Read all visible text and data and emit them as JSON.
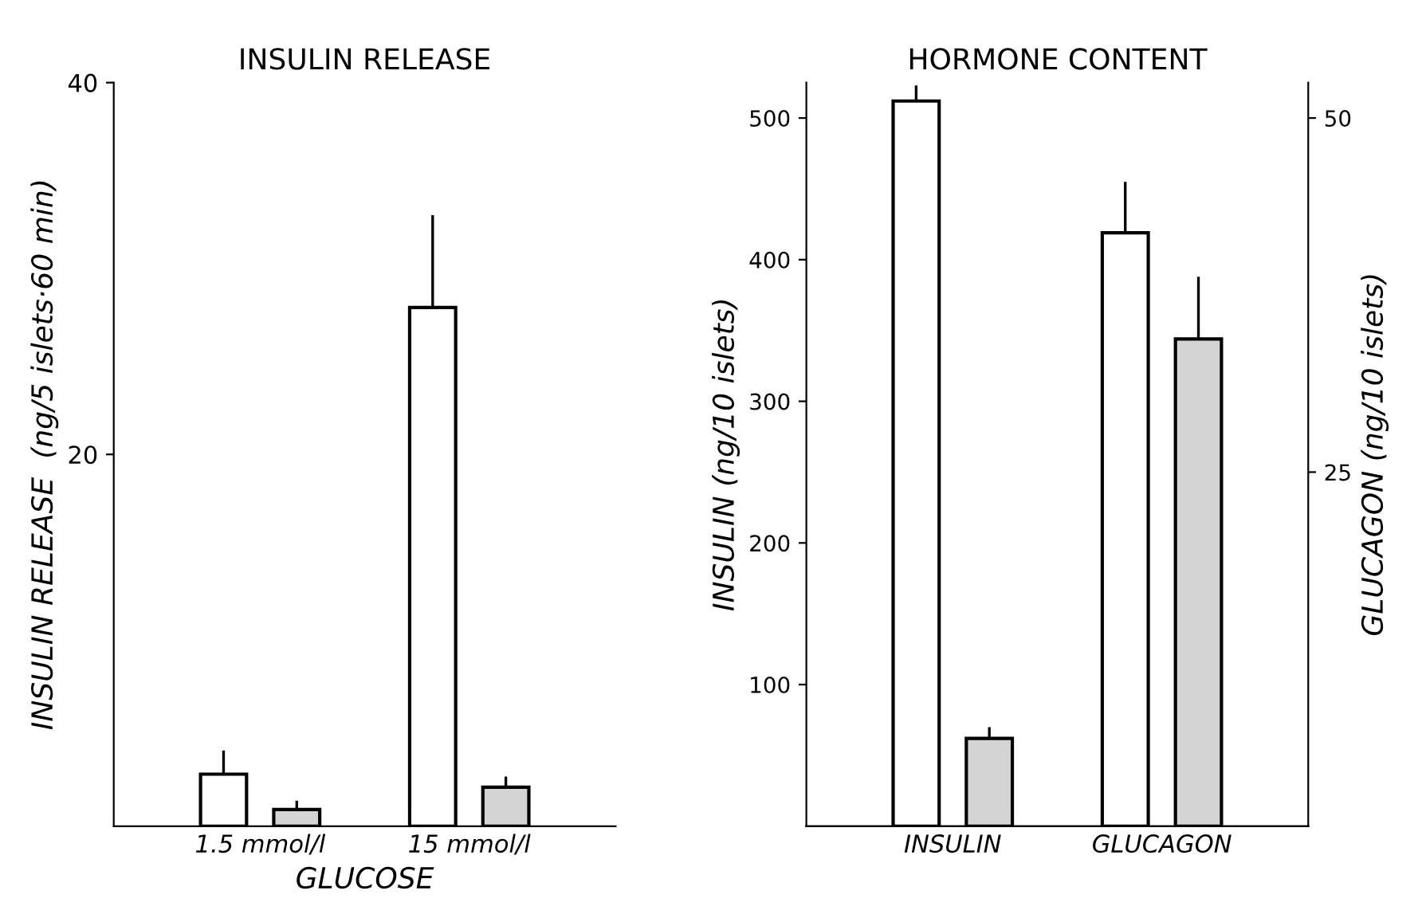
{
  "chart_data": [
    {
      "type": "bar",
      "title": "INSULIN RELEASE",
      "xlabel": "GLUCOSE",
      "ylabel": "INSULIN RELEASE  (ng/5 islets·60 min)",
      "categories": [
        "1.5 mmol/l",
        "15 mmol/l"
      ],
      "ylim": [
        0,
        40
      ],
      "yticks": [
        20,
        40
      ],
      "grid": false,
      "legend": false,
      "series": [
        {
          "color": "#ffffff",
          "values": [
            2.8,
            27.9
          ],
          "errors": [
            [
              2.8,
              4.0
            ],
            [
              27.9,
              32.8
            ]
          ]
        },
        {
          "color": "#d4d4d4",
          "values": [
            0.9,
            2.1
          ],
          "errors": [
            [
              0.9,
              1.3
            ],
            [
              2.1,
              2.6
            ]
          ]
        }
      ]
    },
    {
      "type": "bar",
      "title": "HORMONE CONTENT",
      "ylabel": "INSULIN (ng/10 islets)",
      "y2label": "GLUCAGON (ng/10 islets)",
      "categories": [
        "INSULIN",
        "GLUCAGON"
      ],
      "ylim": [
        0,
        525
      ],
      "yticks": [
        100,
        200,
        300,
        400,
        500
      ],
      "y2lim": [
        0,
        52.5
      ],
      "y2ticks": [
        25,
        50
      ],
      "grid": false,
      "legend": false,
      "series": [
        {
          "color": "#ffffff",
          "values": [
            512,
            null
          ],
          "errors": [
            [
              512,
              522
            ],
            null
          ]
        },
        {
          "color": "#d4d4d4",
          "values": [
            62,
            null
          ],
          "errors": [
            [
              62,
              69
            ],
            null
          ]
        },
        {
          "color": "#ffffff",
          "axis": "y2",
          "values": [
            null,
            41.9
          ],
          "errors": [
            null,
            [
              41.9,
              45.4
            ]
          ]
        },
        {
          "color": "#d4d4d4",
          "axis": "y2",
          "values": [
            null,
            34.4
          ],
          "errors": [
            null,
            [
              34.4,
              38.7
            ]
          ]
        }
      ]
    }
  ]
}
